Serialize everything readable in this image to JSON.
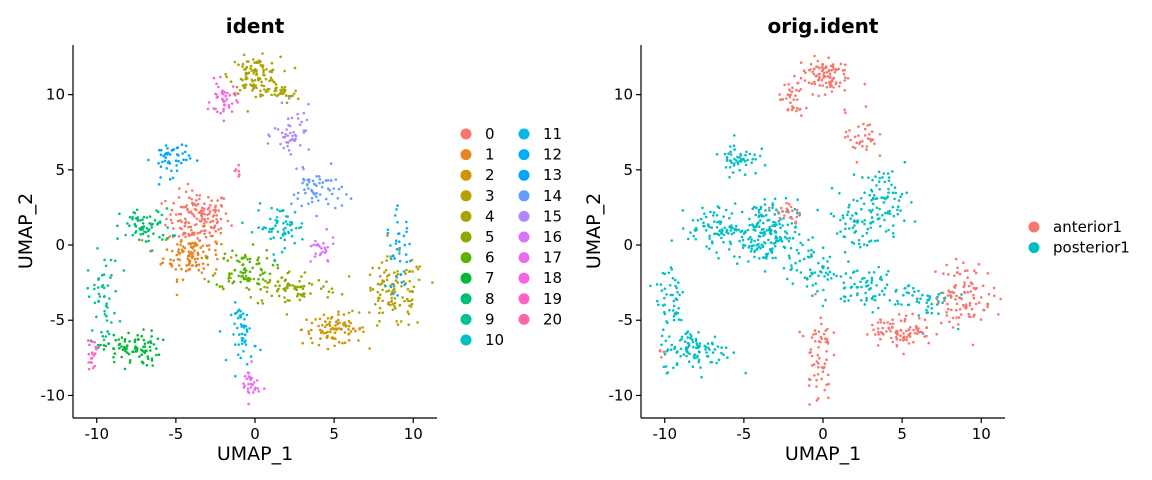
{
  "chart_data": [
    {
      "type": "scatter",
      "title": "ident",
      "xlabel": "UMAP_1",
      "ylabel": "UMAP_2",
      "xticks": [
        -10,
        -5,
        0,
        5,
        10
      ],
      "yticks": [
        -10,
        -5,
        0,
        5,
        10
      ],
      "xlim": [
        -11.5,
        11.5
      ],
      "ylim": [
        -11.5,
        13.3
      ],
      "grid": false,
      "legend_position": "right",
      "legend_columns": 2,
      "series": [
        {
          "name": "0",
          "color": "#F8766D",
          "clusters": [
            {
              "x": -3.6,
              "y": 1.8,
              "sx": 1.0,
              "sy": 0.9,
              "n": 150
            }
          ]
        },
        {
          "name": "1",
          "color": "#E7851E",
          "clusters": [
            {
              "x": -4.0,
              "y": -0.6,
              "sx": 0.9,
              "sy": 0.8,
              "n": 120
            }
          ]
        },
        {
          "name": "2",
          "color": "#D09400",
          "clusters": [
            {
              "x": 5.0,
              "y": -5.6,
              "sx": 1.0,
              "sy": 0.5,
              "n": 90
            }
          ]
        },
        {
          "name": "3",
          "color": "#B2A100",
          "clusters": [
            {
              "x": 8.8,
              "y": -3.3,
              "sx": 1.0,
              "sy": 1.2,
              "n": 110
            }
          ]
        },
        {
          "name": "4",
          "color": "#AAA200",
          "clusters": [
            {
              "x": 0.0,
              "y": 11.3,
              "sx": 0.8,
              "sy": 0.6,
              "n": 110
            },
            {
              "x": 1.6,
              "y": 10.0,
              "sx": 0.6,
              "sy": 0.3,
              "n": 30
            }
          ]
        },
        {
          "name": "5",
          "color": "#89AC00",
          "clusters": [
            {
              "x": 2.3,
              "y": -2.9,
              "sx": 1.5,
              "sy": 0.6,
              "n": 80
            }
          ]
        },
        {
          "name": "6",
          "color": "#5BB300",
          "clusters": [
            {
              "x": -0.7,
              "y": -1.6,
              "sx": 0.9,
              "sy": 0.7,
              "n": 80
            }
          ]
        },
        {
          "name": "7",
          "color": "#00BA38",
          "clusters": [
            {
              "x": -7.8,
              "y": -6.9,
              "sx": 0.9,
              "sy": 0.6,
              "n": 90
            }
          ]
        },
        {
          "name": "8",
          "color": "#00BF74",
          "clusters": [
            {
              "x": -6.9,
              "y": 1.2,
              "sx": 0.8,
              "sy": 0.6,
              "n": 70
            }
          ]
        },
        {
          "name": "9",
          "color": "#00C19A",
          "clusters": [
            {
              "x": -9.6,
              "y": -3.5,
              "sx": 0.5,
              "sy": 1.5,
              "n": 50
            }
          ]
        },
        {
          "name": "10",
          "color": "#00BFC4",
          "clusters": [
            {
              "x": 1.6,
              "y": 1.2,
              "sx": 0.8,
              "sy": 0.7,
              "n": 60
            }
          ]
        },
        {
          "name": "11",
          "color": "#00B8E7",
          "clusters": [
            {
              "x": -0.7,
              "y": -5.9,
              "sx": 0.4,
              "sy": 1.0,
              "n": 50
            }
          ]
        },
        {
          "name": "12",
          "color": "#00ADFA",
          "clusters": [
            {
              "x": 9.1,
              "y": -0.5,
              "sx": 0.4,
              "sy": 1.3,
              "n": 40
            }
          ]
        },
        {
          "name": "13",
          "color": "#00A5FF",
          "clusters": [
            {
              "x": -5.3,
              "y": 5.8,
              "sx": 0.6,
              "sy": 0.6,
              "n": 50
            }
          ]
        },
        {
          "name": "14",
          "color": "#619CFF",
          "clusters": [
            {
              "x": 3.9,
              "y": 3.6,
              "sx": 0.8,
              "sy": 0.7,
              "n": 60
            }
          ]
        },
        {
          "name": "15",
          "color": "#AE87FF",
          "clusters": [
            {
              "x": 2.4,
              "y": 7.3,
              "sx": 0.6,
              "sy": 0.9,
              "n": 50
            }
          ]
        },
        {
          "name": "16",
          "color": "#D873FF",
          "clusters": [
            {
              "x": 4.1,
              "y": -0.4,
              "sx": 0.5,
              "sy": 0.5,
              "n": 25
            }
          ]
        },
        {
          "name": "17",
          "color": "#EA6AF1",
          "clusters": [
            {
              "x": -0.3,
              "y": -9.3,
              "sx": 0.3,
              "sy": 0.6,
              "n": 30
            }
          ]
        },
        {
          "name": "18",
          "color": "#F763E0",
          "clusters": [
            {
              "x": -2.0,
              "y": 9.6,
              "sx": 0.4,
              "sy": 0.6,
              "n": 40
            }
          ]
        },
        {
          "name": "19",
          "color": "#FF63C7",
          "clusters": [
            {
              "x": -10.3,
              "y": -7.2,
              "sx": 0.2,
              "sy": 0.5,
              "n": 20
            }
          ]
        },
        {
          "name": "20",
          "color": "#FF66A8",
          "clusters": [
            {
              "x": -1.0,
              "y": 5.0,
              "sx": 0.2,
              "sy": 0.3,
              "n": 6
            }
          ]
        }
      ]
    },
    {
      "type": "scatter",
      "title": "orig.ident",
      "xlabel": "UMAP_1",
      "ylabel": "UMAP_2",
      "xticks": [
        -10,
        -5,
        0,
        5,
        10
      ],
      "yticks": [
        -10,
        -5,
        0,
        5,
        10
      ],
      "xlim": [
        -11.5,
        11.5
      ],
      "ylim": [
        -11.5,
        13.3
      ],
      "grid": false,
      "legend_position": "right",
      "legend_columns": 1,
      "series": [
        {
          "name": "posterior1",
          "color": "#00BFC4",
          "clusters": [
            {
              "x": -3.8,
              "y": 0.8,
              "sx": 1.1,
              "sy": 1.1,
              "n": 200
            },
            {
              "x": -6.9,
              "y": 1.2,
              "sx": 0.8,
              "sy": 0.6,
              "n": 70
            },
            {
              "x": -9.6,
              "y": -3.5,
              "sx": 0.5,
              "sy": 1.5,
              "n": 50
            },
            {
              "x": -8.0,
              "y": -7.0,
              "sx": 1.1,
              "sy": 0.7,
              "n": 100
            },
            {
              "x": -5.3,
              "y": 5.8,
              "sx": 0.6,
              "sy": 0.6,
              "n": 50
            },
            {
              "x": 2.4,
              "y": 1.6,
              "sx": 1.3,
              "sy": 1.0,
              "n": 90
            },
            {
              "x": 3.9,
              "y": 3.6,
              "sx": 0.8,
              "sy": 0.7,
              "n": 50
            },
            {
              "x": 2.8,
              "y": -2.9,
              "sx": 1.4,
              "sy": 0.7,
              "n": 80
            },
            {
              "x": -0.8,
              "y": -1.6,
              "sx": 0.8,
              "sy": 0.7,
              "n": 50
            },
            {
              "x": 6.5,
              "y": -3.8,
              "sx": 0.9,
              "sy": 0.7,
              "n": 40
            }
          ]
        },
        {
          "name": "anterior1",
          "color": "#F8766D",
          "clusters": [
            {
              "x": 0.0,
              "y": 11.3,
              "sx": 0.8,
              "sy": 0.6,
              "n": 100
            },
            {
              "x": -2.0,
              "y": 9.6,
              "sx": 0.4,
              "sy": 0.6,
              "n": 35
            },
            {
              "x": 2.4,
              "y": 7.3,
              "sx": 0.5,
              "sy": 0.8,
              "n": 35
            },
            {
              "x": 5.0,
              "y": -5.7,
              "sx": 1.0,
              "sy": 0.5,
              "n": 90
            },
            {
              "x": 8.9,
              "y": -3.3,
              "sx": 0.9,
              "sy": 1.1,
              "n": 100
            },
            {
              "x": -0.3,
              "y": -7.2,
              "sx": 0.4,
              "sy": 1.6,
              "n": 60
            },
            {
              "x": -2.2,
              "y": 2.2,
              "sx": 0.5,
              "sy": 0.5,
              "n": 20
            },
            {
              "x": -10.3,
              "y": -7.2,
              "sx": 0.2,
              "sy": 0.5,
              "n": 5
            }
          ]
        }
      ],
      "legend_order": [
        "anterior1",
        "posterior1"
      ]
    }
  ]
}
